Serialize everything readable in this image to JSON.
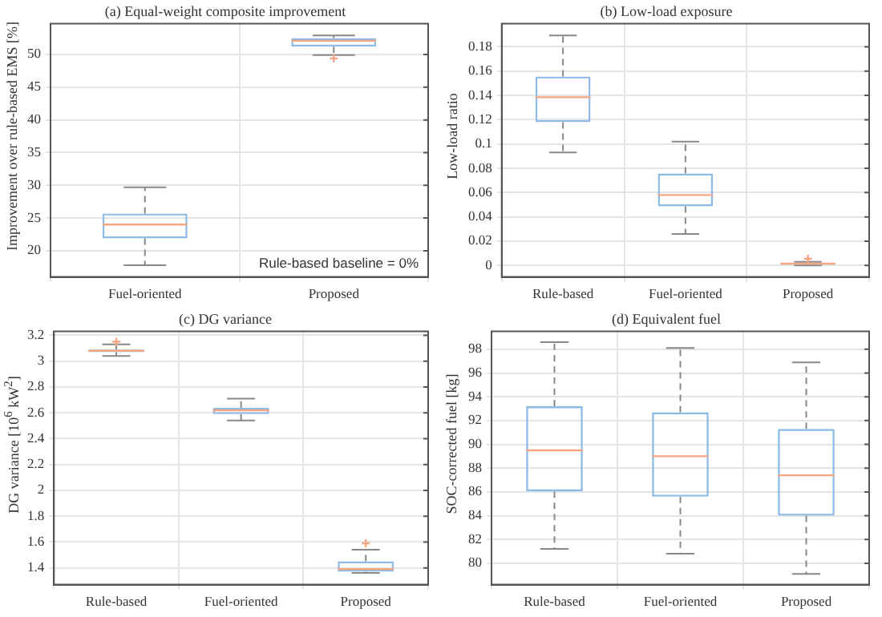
{
  "chart_data": [
    {
      "type": "box",
      "title": "(a) Equal-weight composite improvement",
      "ylabel": "Improvement over rule-based EMS [%]",
      "categories": [
        "Fuel-oriented",
        "Proposed"
      ],
      "color": "#8dbbe8",
      "grid": true,
      "ylim": [
        16,
        54.7
      ],
      "yticks": [
        20,
        25,
        30,
        35,
        40,
        45,
        50
      ],
      "annotations": [
        "Rule-based baseline = 0%"
      ],
      "boxes": [
        {
          "low": 17.8,
          "q1": 21.9,
          "median": 24.0,
          "q3": 25.7,
          "high": 29.7
        },
        {
          "low": 49.9,
          "q1": 51.2,
          "median": 52.1,
          "q3": 52.5,
          "high": 52.9,
          "outliers": [
            49.4
          ]
        }
      ]
    },
    {
      "type": "box",
      "title": "(b) Low-load exposure",
      "ylabel": "Low-load ratio",
      "categories": [
        "Rule-based",
        "Fuel-oriented",
        "Proposed"
      ],
      "color": "#8dbbe8",
      "grid": true,
      "ylim": [
        -0.0094,
        0.199
      ],
      "yticks": [
        0,
        0.02,
        0.04,
        0.06,
        0.08,
        0.1,
        0.12,
        0.14,
        0.16,
        0.18
      ],
      "boxes": [
        {
          "low": 0.093,
          "q1": 0.118,
          "median": 0.1385,
          "q3": 0.1556,
          "high": 0.1894
        },
        {
          "low": 0.026,
          "q1": 0.0487,
          "median": 0.058,
          "q3": 0.0757,
          "high": 0.102
        },
        {
          "low": 0,
          "q1": 0.0008,
          "median": 0.0015,
          "q3": 0.002,
          "high": 0.003,
          "outliers": [
            0.0055
          ]
        }
      ]
    },
    {
      "type": "box",
      "title": "(c) DG variance",
      "ylabel": "DG variance [10$^{6}$ kW$^{2}$]",
      "categories": [
        "Rule-based",
        "Fuel-oriented",
        "Proposed"
      ],
      "color": "#8dbbe8",
      "grid": true,
      "ylim": [
        1.27,
        3.23
      ],
      "yticks": [
        1.4,
        1.6,
        1.8,
        2,
        2.2,
        2.4,
        2.6,
        2.8,
        3,
        3.2
      ],
      "boxes": [
        {
          "low": 3.04,
          "q1": 3.07,
          "median": 3.08,
          "q3": 3.09,
          "high": 3.13,
          "outliers": [
            3.15
          ]
        },
        {
          "low": 2.54,
          "q1": 2.59,
          "median": 2.62,
          "q3": 2.64,
          "high": 2.71
        },
        {
          "low": 1.36,
          "q1": 1.37,
          "median": 1.39,
          "q3": 1.45,
          "high": 1.54,
          "outliers": [
            1.59
          ]
        }
      ]
    },
    {
      "type": "box",
      "title": "(d) Equivalent fuel",
      "ylabel": "SOC-corrected fuel [kg]",
      "categories": [
        "Rule-based",
        "Fuel-oriented",
        "Proposed"
      ],
      "color": "#8dbbe8",
      "grid": true,
      "ylim": [
        78.2,
        99.5
      ],
      "yticks": [
        80,
        82,
        84,
        86,
        88,
        90,
        92,
        94,
        96,
        98
      ],
      "boxes": [
        {
          "low": 81.2,
          "q1": 86.05,
          "median": 89.5,
          "q3": 93.2,
          "high": 98.6
        },
        {
          "low": 80.8,
          "q1": 85.6,
          "median": 89.0,
          "q3": 92.7,
          "high": 98.1
        },
        {
          "low": 79.1,
          "q1": 84.0,
          "median": 87.4,
          "q3": 91.3,
          "high": 96.9
        }
      ]
    }
  ]
}
